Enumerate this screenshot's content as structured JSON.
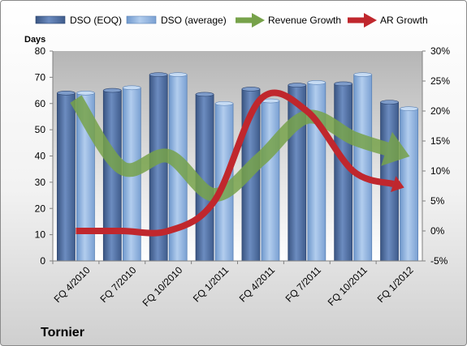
{
  "chart_data": {
    "type": "bar",
    "company": "Tornier",
    "ylabel_left": "Days",
    "categories": [
      "FQ 4/2010",
      "FQ 7/2010",
      "FQ 10/2010",
      "FQ 1/2011",
      "FQ 4/2011",
      "FQ 7/2011",
      "FQ 10/2011",
      "FQ 1/2012"
    ],
    "left_axis": {
      "min": 0,
      "max": 80,
      "ticks": [
        "0",
        "10",
        "20",
        "30",
        "40",
        "50",
        "60",
        "70",
        "80"
      ]
    },
    "right_axis": {
      "min": -5,
      "max": 30,
      "ticks": [
        "-5%",
        "0%",
        "5%",
        "10%",
        "15%",
        "20%",
        "25%",
        "30%"
      ]
    },
    "series": [
      {
        "name": "DSO (EOQ)",
        "kind": "bar",
        "axis": "left",
        "color": "#4f6fa0",
        "values": [
          64,
          65,
          71,
          63.5,
          65.5,
          67,
          67.5,
          60.5
        ]
      },
      {
        "name": "DSO (average)",
        "kind": "bar",
        "axis": "left",
        "color": "#8fb3e0",
        "values": [
          64,
          66,
          71,
          60,
          61,
          68,
          71,
          58
        ]
      },
      {
        "name": "Revenue Growth",
        "kind": "arrow-line",
        "axis": "right",
        "color": "#77a24a",
        "values": [
          22,
          10.5,
          12.5,
          6,
          12,
          19,
          15.5,
          13
        ]
      },
      {
        "name": "AR Growth",
        "kind": "arrow-line",
        "axis": "right",
        "color": "#c0272d",
        "values": [
          0,
          0,
          0,
          5,
          22,
          20,
          10,
          7.5
        ]
      }
    ],
    "grid": false,
    "legend_position": "top"
  }
}
